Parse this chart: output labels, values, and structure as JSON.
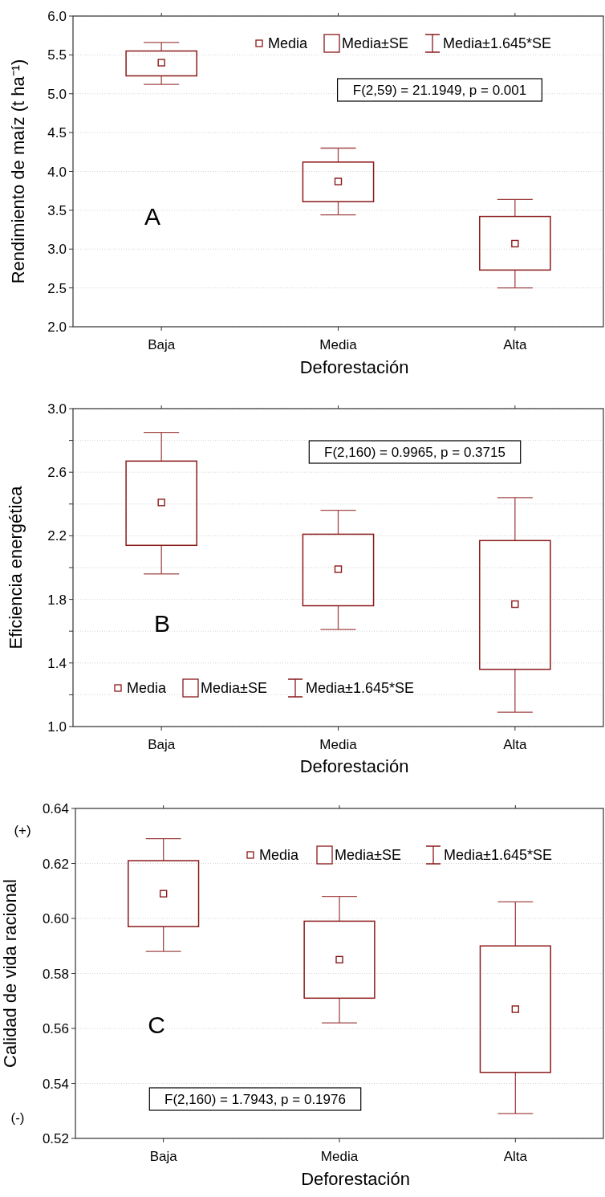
{
  "chart_data": [
    {
      "type": "box",
      "xlabel": "Deforestación",
      "ylabel": "Rendimiento de maíz (t ha⁻¹)",
      "categories": [
        "Baja",
        "Media",
        "Alta"
      ],
      "series": [
        {
          "color": "#8b1a1a",
          "boxes": [
            {
              "low": 5.12,
              "q1": 5.23,
              "median": 5.4,
              "q3": 5.55,
              "high": 5.66
            },
            {
              "low": 3.44,
              "q1": 3.61,
              "median": 3.87,
              "q3": 4.12,
              "high": 4.3
            },
            {
              "low": 2.5,
              "q1": 2.73,
              "median": 3.07,
              "q3": 3.42,
              "high": 3.64
            }
          ]
        }
      ],
      "ylim": [
        2,
        6
      ],
      "yticks": [
        {
          "value": 2,
          "label": "2.0"
        },
        2.5,
        {
          "value": 3,
          "label": "3.0"
        },
        3.5,
        {
          "value": 4,
          "label": "4.0"
        },
        4.5,
        {
          "value": 5,
          "label": "5.0"
        },
        5.5,
        {
          "value": 6,
          "label": "6.0"
        }
      ],
      "grid": "y",
      "annotations": [
        "F(2,59) = 21.1949, p = 0.001",
        "A",
        "Media",
        "Media±SE",
        "Media±1.645*SE"
      ]
    },
    {
      "type": "box",
      "xlabel": "Deforestación",
      "ylabel": "Eficiencia energética",
      "categories": [
        "Baja",
        "Media",
        "Alta"
      ],
      "series": [
        {
          "color": "#8b1a1a",
          "boxes": [
            {
              "low": 1.96,
              "q1": 2.14,
              "median": 2.41,
              "q3": 2.67,
              "high": 2.85
            },
            {
              "low": 1.61,
              "q1": 1.76,
              "median": 1.99,
              "q3": 2.21,
              "high": 2.36
            },
            {
              "low": 1.09,
              "q1": 1.36,
              "median": 1.77,
              "q3": 2.17,
              "high": 2.44
            }
          ]
        }
      ],
      "ylim": [
        1,
        3
      ],
      "yticks": [
        {
          "value": 1.0,
          "label": "1.0"
        },
        {
          "value": 1.2,
          "label": null
        },
        {
          "value": 1.4,
          "label": "1.4"
        },
        {
          "value": 1.6,
          "label": null
        },
        {
          "value": 1.8,
          "label": "1.8"
        },
        {
          "value": 2.0,
          "label": null
        },
        {
          "value": 2.2,
          "label": "2.2"
        },
        {
          "value": 2.4,
          "label": null
        },
        {
          "value": 2.6,
          "label": "2.6"
        },
        {
          "value": 2.8,
          "label": null
        },
        {
          "value": 3.0,
          "label": "3.0"
        }
      ],
      "grid": "y",
      "annotations": [
        "F(2,160) = 0.9965, p = 0.3715",
        "B",
        "Media",
        "Media±SE",
        "Media±1.645*SE"
      ]
    },
    {
      "type": "box",
      "xlabel": "Deforestación",
      "ylabel": "Calidad de vida racional",
      "categories": [
        "Baja",
        "Media",
        "Alta"
      ],
      "series": [
        {
          "color": "#8b1a1a",
          "boxes": [
            {
              "low": 0.588,
              "q1": 0.597,
              "median": 0.609,
              "q3": 0.621,
              "high": 0.629
            },
            {
              "low": 0.562,
              "q1": 0.571,
              "median": 0.585,
              "q3": 0.599,
              "high": 0.608
            },
            {
              "low": 0.529,
              "q1": 0.544,
              "median": 0.567,
              "q3": 0.59,
              "high": 0.606
            }
          ]
        }
      ],
      "ylim": [
        0.52,
        0.64
      ],
      "yticks": [
        {
          "value": 0.52,
          "label": "0.52"
        },
        {
          "value": 0.54,
          "label": "0.54"
        },
        {
          "value": 0.56,
          "label": "0.56"
        },
        {
          "value": 0.58,
          "label": "0.58"
        },
        {
          "value": 0.6,
          "label": "0.60"
        },
        {
          "value": 0.62,
          "label": "0.62"
        },
        {
          "value": 0.64,
          "label": "0.64"
        }
      ],
      "grid": "y",
      "annotations": [
        "F(2,160) = 1.7943, p = 0.1976",
        "C",
        "Media",
        "Media±SE",
        "Media±1.645*SE",
        "(+)",
        "(-)"
      ]
    }
  ]
}
